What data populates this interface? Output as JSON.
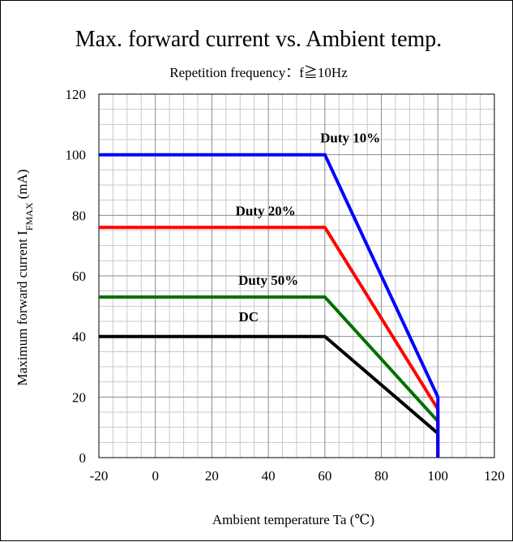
{
  "chart_data": {
    "type": "line",
    "title": "Max. forward current vs. Ambient temp.",
    "subtitle": "Repetition frequency：f≧10Hz",
    "xlabel": "Ambient temperature Ta (℃)",
    "ylabel": {
      "prefix": "Maximum forward current I",
      "subscript": "FMAX",
      "suffix": " (mA)"
    },
    "xlim": [
      -20,
      120
    ],
    "ylim": [
      0,
      120
    ],
    "x_ticks": [
      -20,
      0,
      20,
      40,
      60,
      80,
      100,
      120
    ],
    "y_ticks": [
      0,
      20,
      40,
      60,
      80,
      100,
      120
    ],
    "grid": true,
    "series": [
      {
        "name": "Duty 10%",
        "color": "#0000ff",
        "points": [
          [
            -20,
            100
          ],
          [
            60,
            100
          ],
          [
            100,
            20
          ],
          [
            100,
            0
          ]
        ],
        "label_at": [
          69,
          104
        ]
      },
      {
        "name": "Duty 20%",
        "color": "#ff0000",
        "points": [
          [
            -20,
            76
          ],
          [
            60,
            76
          ],
          [
            100,
            16
          ],
          [
            100,
            0
          ]
        ],
        "label_at": [
          39,
          80
        ]
      },
      {
        "name": "Duty 50%",
        "color": "#007000",
        "points": [
          [
            -20,
            53
          ],
          [
            60,
            53
          ],
          [
            100,
            12
          ],
          [
            100,
            0
          ]
        ],
        "label_at": [
          40,
          57
        ]
      },
      {
        "name": "DC",
        "color": "#000000",
        "points": [
          [
            -20,
            40
          ],
          [
            60,
            40
          ],
          [
            100,
            8
          ],
          [
            100,
            0
          ]
        ],
        "label_at": [
          33,
          45
        ]
      }
    ]
  }
}
